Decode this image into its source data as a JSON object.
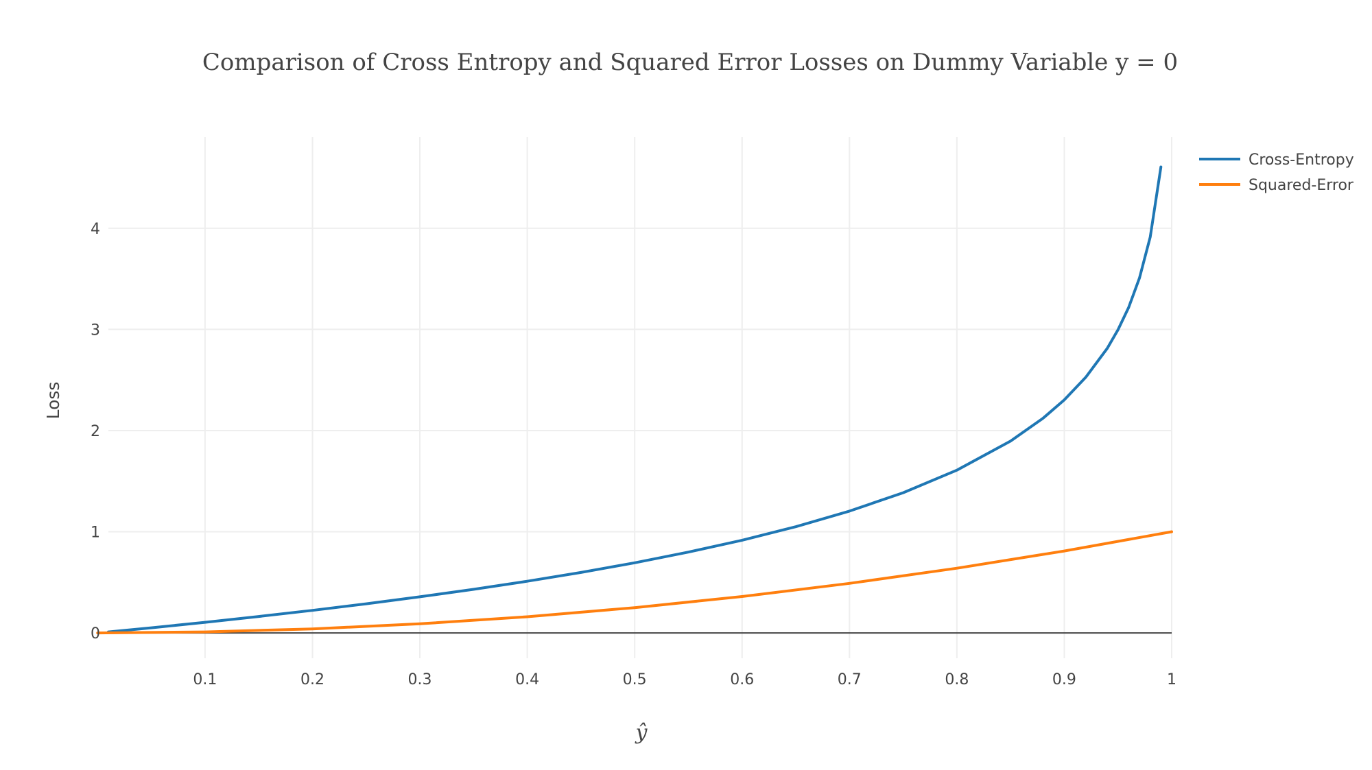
{
  "chart_data": {
    "type": "line",
    "title": "Comparison of Cross Entropy and Squared Error Losses on Dummy Variable y = 0",
    "xlabel": "ŷ",
    "ylabel": "Loss",
    "xlim": [
      0.01,
      1.0
    ],
    "ylim": [
      -0.25,
      4.9
    ],
    "xticks": [
      0.1,
      0.2,
      0.3,
      0.4,
      0.5,
      0.6,
      0.7,
      0.8,
      0.9,
      1
    ],
    "xtick_labels": [
      "0.1",
      "0.2",
      "0.3",
      "0.4",
      "0.5",
      "0.6",
      "0.7",
      "0.8",
      "0.9",
      "1"
    ],
    "yticks": [
      0,
      1,
      2,
      3,
      4
    ],
    "ytick_labels": [
      "0",
      "1",
      "2",
      "3",
      "4"
    ],
    "grid": true,
    "legend_position": "top-right",
    "series": [
      {
        "name": "Cross-Entropy",
        "color": "#1f77b4",
        "x": [
          0.01,
          0.05,
          0.1,
          0.15,
          0.2,
          0.25,
          0.3,
          0.35,
          0.4,
          0.45,
          0.5,
          0.55,
          0.6,
          0.65,
          0.7,
          0.75,
          0.8,
          0.85,
          0.88,
          0.9,
          0.92,
          0.94,
          0.95,
          0.96,
          0.97,
          0.98,
          0.99
        ],
        "values": [
          0.01,
          0.051,
          0.105,
          0.163,
          0.223,
          0.288,
          0.357,
          0.431,
          0.511,
          0.598,
          0.693,
          0.799,
          0.916,
          1.05,
          1.204,
          1.386,
          1.609,
          1.897,
          2.12,
          2.303,
          2.526,
          2.813,
          2.996,
          3.219,
          3.507,
          3.912,
          4.605
        ]
      },
      {
        "name": "Squared-Error",
        "color": "#ff7f0e",
        "x": [
          0.0,
          0.1,
          0.2,
          0.3,
          0.4,
          0.5,
          0.6,
          0.7,
          0.8,
          0.9,
          1.0
        ],
        "values": [
          0.0,
          0.01,
          0.04,
          0.09,
          0.16,
          0.25,
          0.36,
          0.49,
          0.64,
          0.81,
          1.0
        ]
      }
    ]
  }
}
